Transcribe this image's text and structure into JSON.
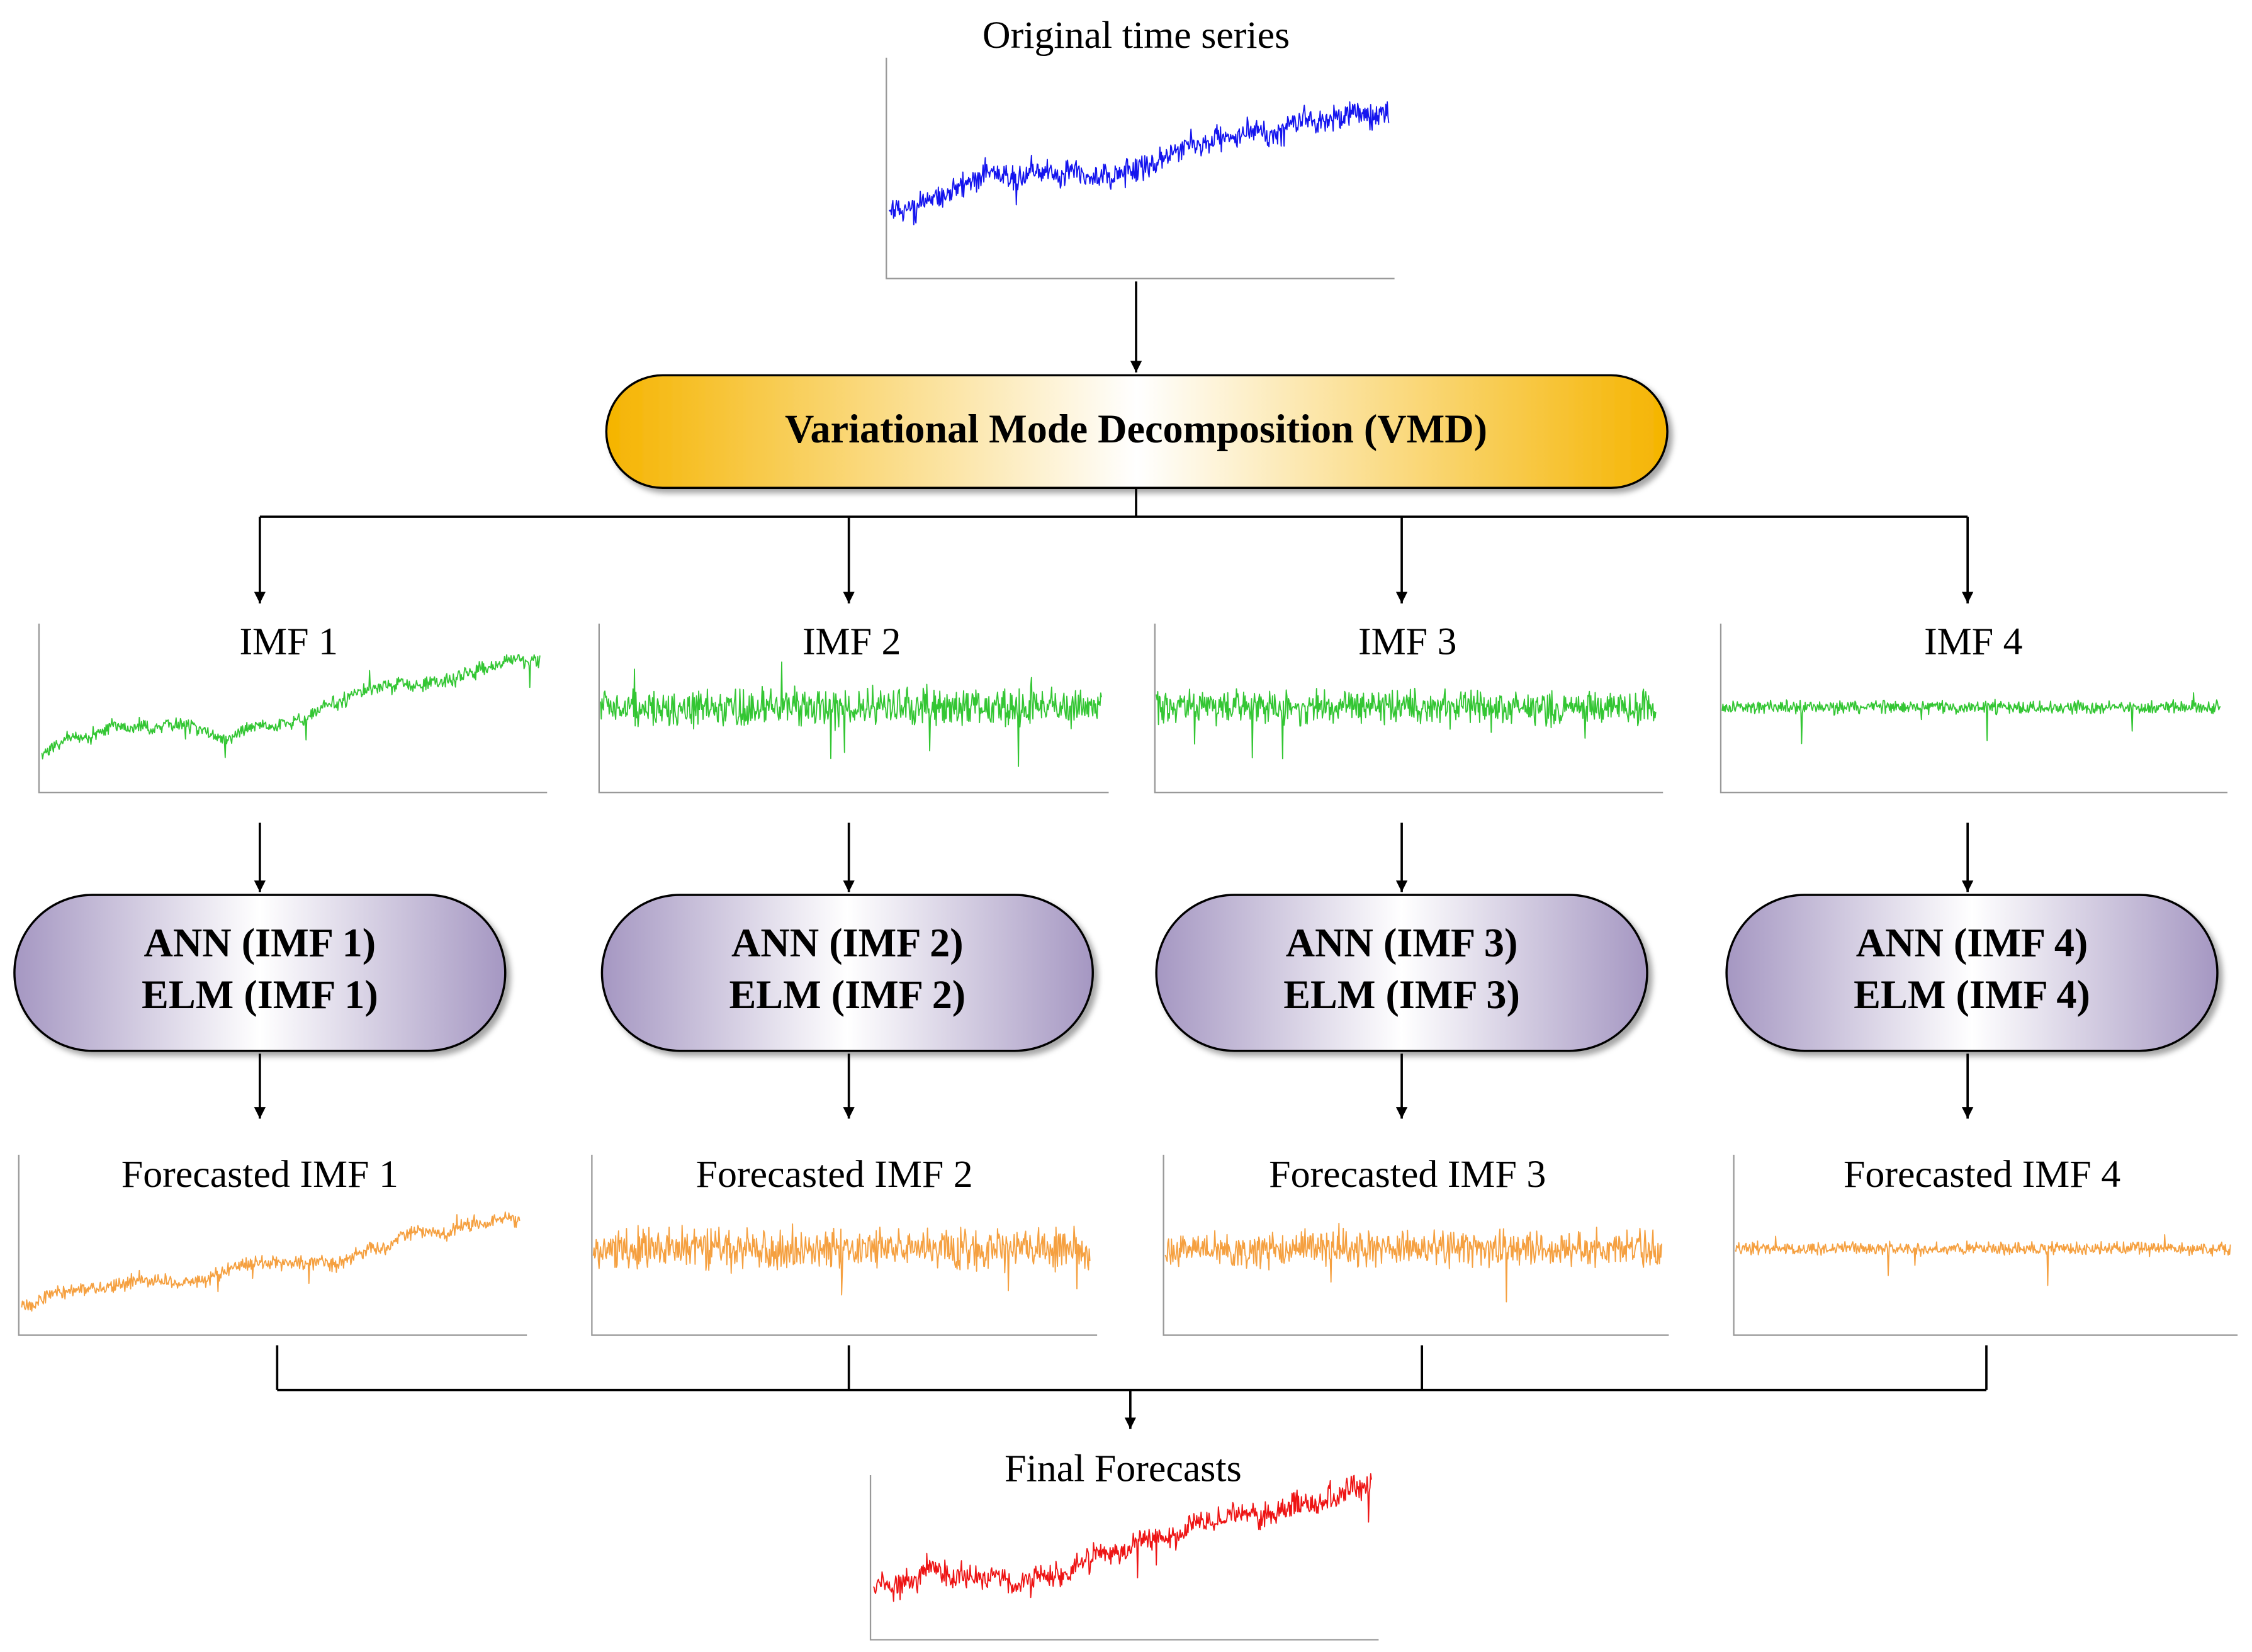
{
  "original": {
    "title": "Original time series"
  },
  "vmd": {
    "label": "Variational Mode Decomposition (VMD)"
  },
  "imfs": [
    "IMF 1",
    "IMF 2",
    "IMF 3",
    "IMF 4"
  ],
  "models": [
    {
      "ann": "ANN (IMF 1)",
      "elm": "ELM (IMF 1)"
    },
    {
      "ann": "ANN (IMF 2)",
      "elm": "ELM (IMF 2)"
    },
    {
      "ann": "ANN (IMF 3)",
      "elm": "ELM (IMF 3)"
    },
    {
      "ann": "ANN (IMF 4)",
      "elm": "ELM (IMF 4)"
    }
  ],
  "forecasts": [
    "Forecasted IMF 1",
    "Forecasted IMF 2",
    "Forecasted IMF 3",
    "Forecasted IMF 4"
  ],
  "final": {
    "title": "Final Forecasts"
  }
}
